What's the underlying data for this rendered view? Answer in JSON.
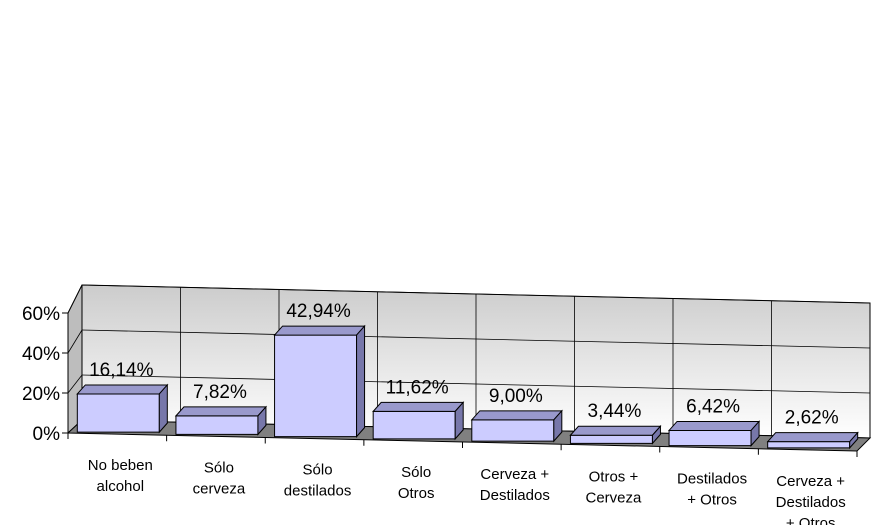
{
  "chart_data": {
    "type": "bar",
    "categories": [
      [
        "No beben",
        "alcohol"
      ],
      [
        "Sólo",
        "cerveza"
      ],
      [
        "Sólo",
        "destilados"
      ],
      [
        "Sólo",
        "Otros"
      ],
      [
        "Cerveza +",
        "Destilados"
      ],
      [
        "Otros +",
        "Cerveza"
      ],
      [
        "Destilados",
        "+ Otros"
      ],
      [
        "Cerveza +",
        "Destilados",
        "+ Otros"
      ]
    ],
    "values": [
      16.14,
      7.82,
      42.94,
      11.62,
      9.0,
      3.44,
      6.42,
      2.62
    ],
    "data_labels": [
      "16,14%",
      "7,82%",
      "42,94%",
      "11,62%",
      "9,00%",
      "3,44%",
      "6,42%",
      "2,62%"
    ],
    "y_ticks": [
      "0%",
      "20%",
      "40%",
      "60%"
    ],
    "ylim": [
      0,
      60
    ],
    "grid": true,
    "three_d": true,
    "colors": {
      "bar_front": "#ccccff",
      "bar_top": "#9999cc",
      "bar_side": "#7777aa",
      "wall_top": "#cccccc",
      "wall_bottom": "#ffffff",
      "floor": "#808080",
      "grid": "#000000"
    }
  }
}
